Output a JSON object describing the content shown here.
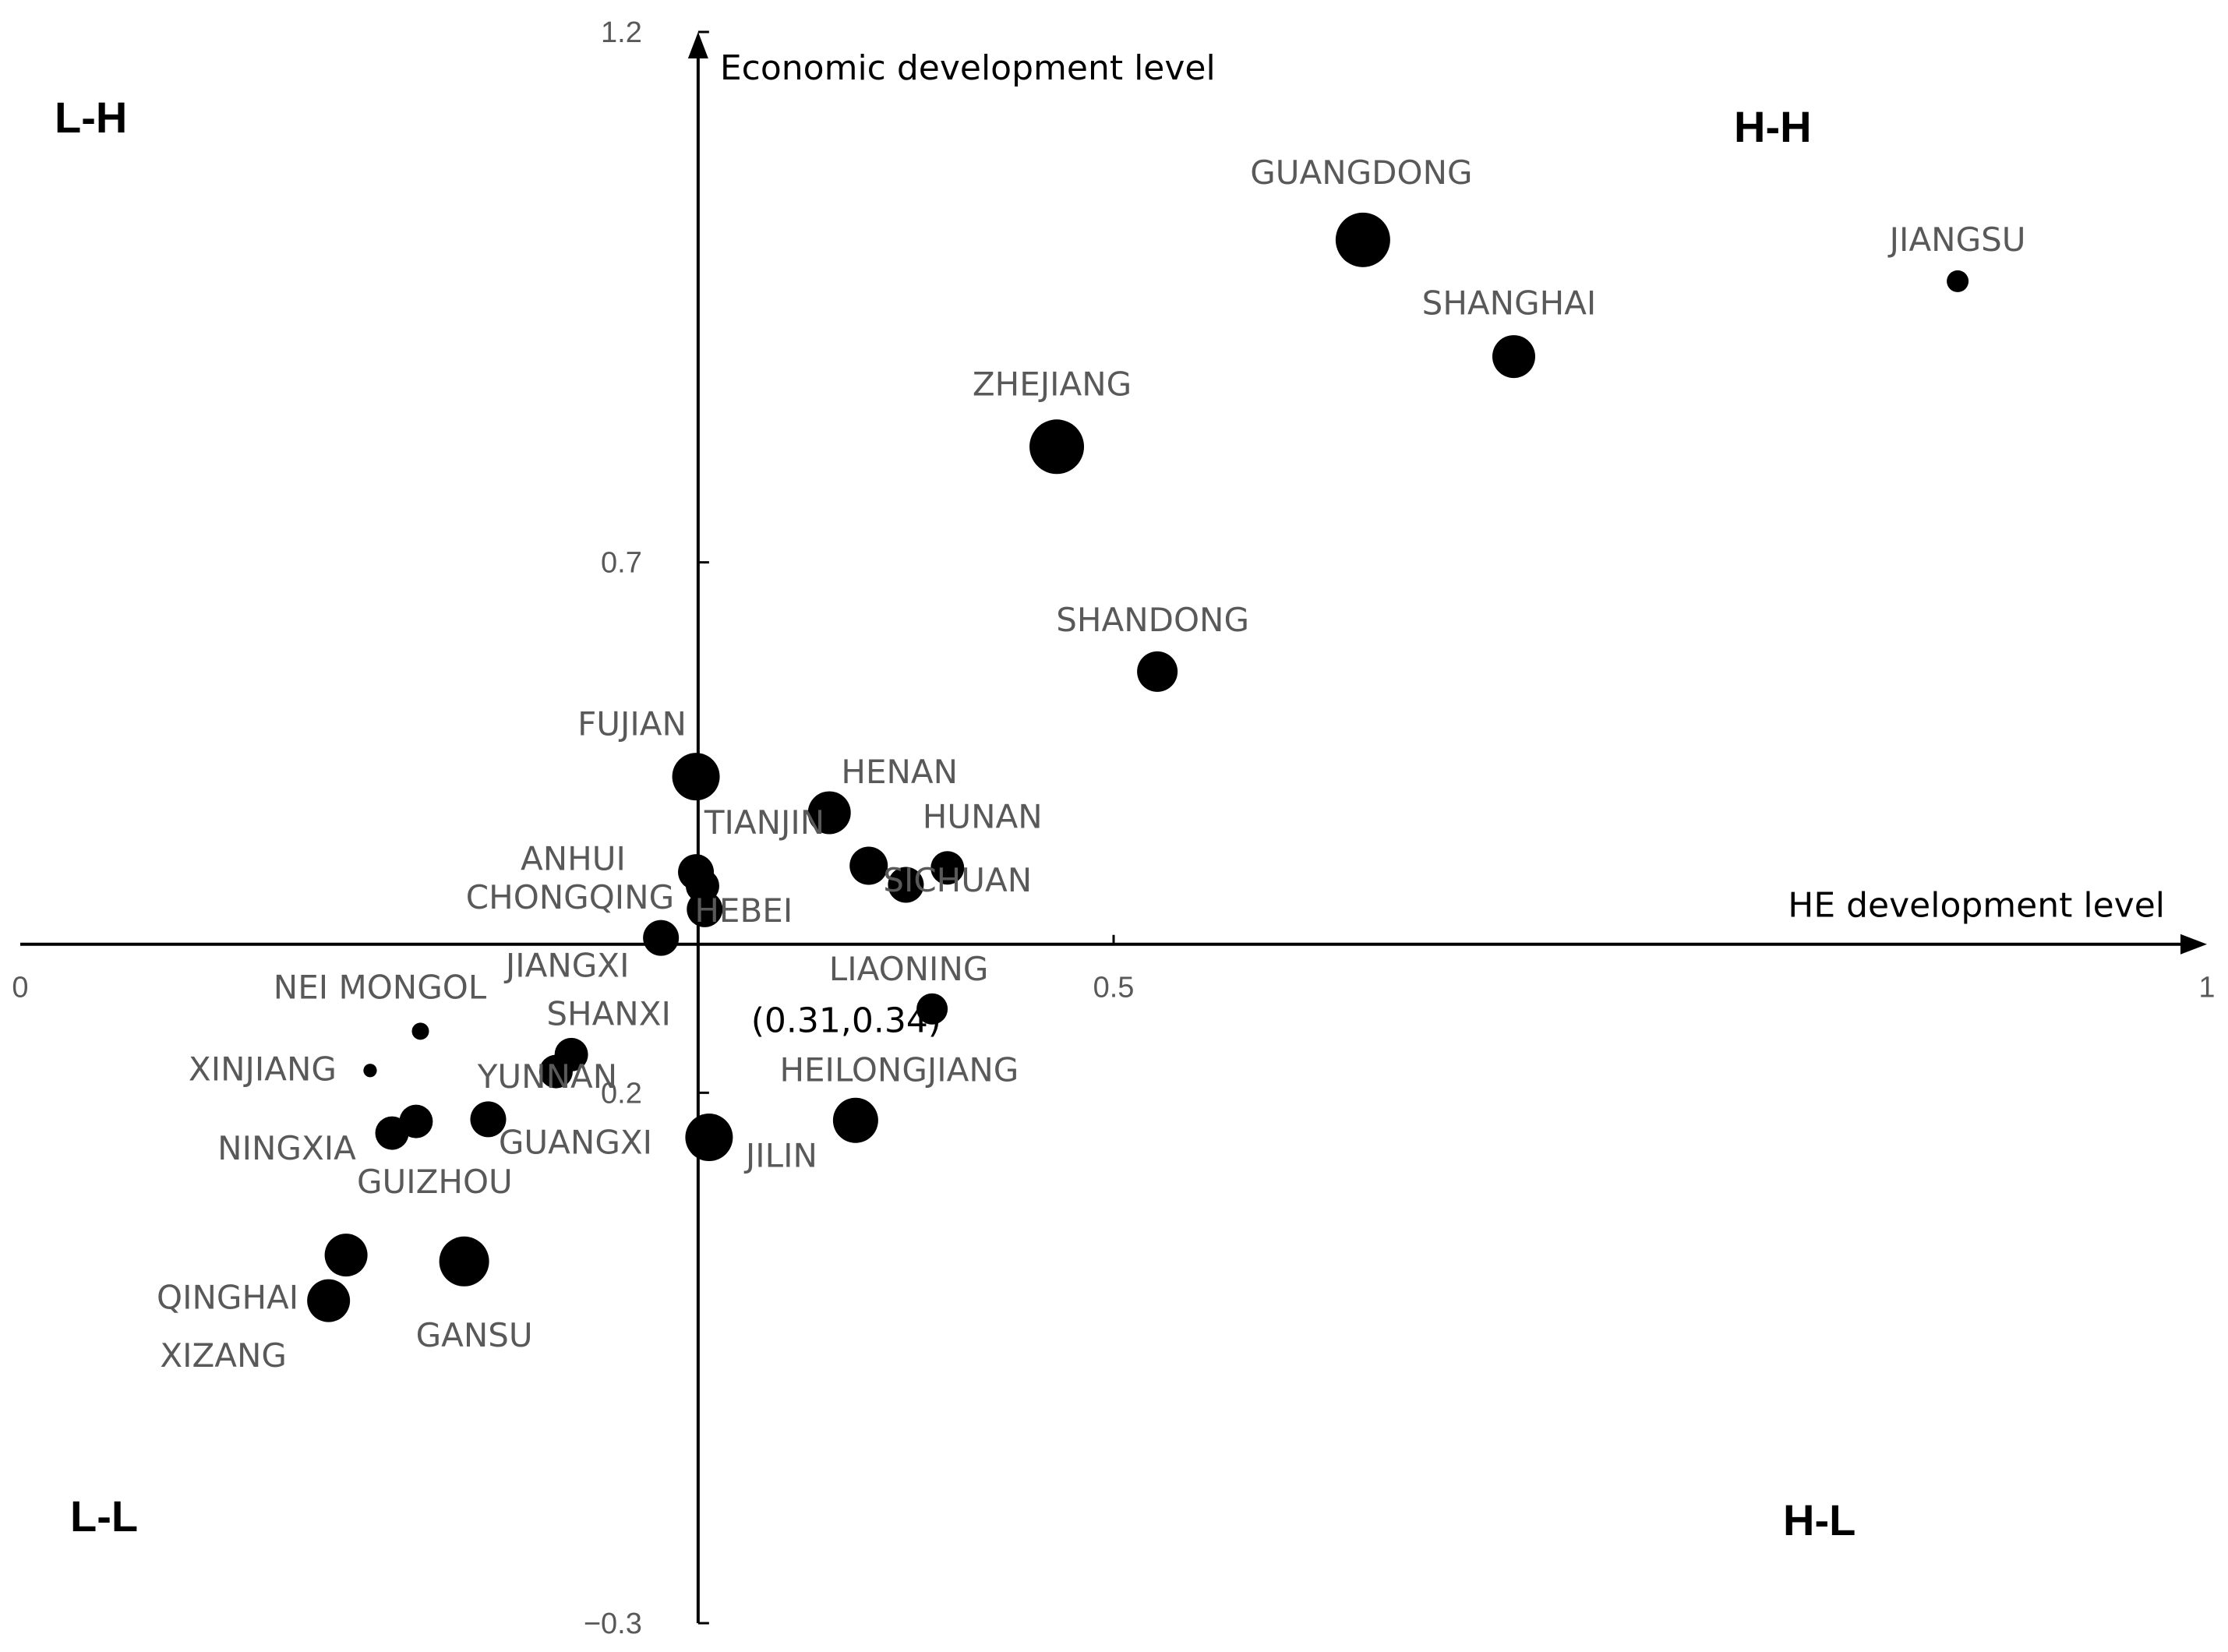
{
  "chart_data": {
    "type": "scatter",
    "xlabel": "HE development level",
    "ylabel": "Economic development level",
    "xlim": [
      0,
      1
    ],
    "ylim": [
      -0.3,
      1.2
    ],
    "x_axis_origin": 0.31,
    "y_axis_origin": 0.34,
    "x_ticks": [
      {
        "value": 0,
        "label": "0"
      },
      {
        "value": 0.5,
        "label": "0.5"
      },
      {
        "value": 1,
        "label": "1"
      }
    ],
    "y_ticks": [
      {
        "value": 1.2,
        "label": "1.2"
      },
      {
        "value": 0.7,
        "label": "0.7"
      },
      {
        "value": 0.2,
        "label": "0.2"
      },
      {
        "value": -0.3,
        "label": "−0.3"
      }
    ],
    "quadrants": [
      "L-H",
      "H-H",
      "L-L",
      "H-L"
    ],
    "center_annotation": "(0.31,0.34)",
    "points": [
      {
        "name": "GUANGDONG",
        "x": 0.614,
        "y": 1.004,
        "size": 1.0
      },
      {
        "name": "JIANGSU",
        "x": 0.886,
        "y": 0.965,
        "size": 0.3
      },
      {
        "name": "SHANGHAI",
        "x": 0.683,
        "y": 0.894,
        "size": 0.75
      },
      {
        "name": "ZHEJIANG",
        "x": 0.474,
        "y": 0.809,
        "size": 1.0
      },
      {
        "name": "SHANDONG",
        "x": 0.52,
        "y": 0.597,
        "size": 0.7
      },
      {
        "name": "FUJIAN",
        "x": 0.309,
        "y": 0.498,
        "size": 0.85
      },
      {
        "name": "TIANJIN",
        "x": 0.309,
        "y": 0.408,
        "size": 0.6
      },
      {
        "name": "HENAN",
        "x": 0.37,
        "y": 0.464,
        "size": 0.75
      },
      {
        "name": "HUNAN",
        "x": 0.424,
        "y": 0.412,
        "size": 0.55
      },
      {
        "name": "SICHUAN",
        "x": 0.388,
        "y": 0.414,
        "size": 0.65
      },
      {
        "name": "ANHUI",
        "x": 0.405,
        "y": 0.396,
        "size": 0.6
      },
      {
        "name": "CHONGQING",
        "x": 0.312,
        "y": 0.395,
        "size": 0.55
      },
      {
        "name": "HEBEI",
        "x": 0.313,
        "y": 0.373,
        "size": 0.6
      },
      {
        "name": "JIANGXI",
        "x": 0.293,
        "y": 0.346,
        "size": 0.6
      },
      {
        "name": "LIAONING",
        "x": 0.417,
        "y": 0.279,
        "size": 0.5
      },
      {
        "name": "SHANXI",
        "x": 0.252,
        "y": 0.236,
        "size": 0.55
      },
      {
        "name": "NEI MONGOL",
        "x": 0.183,
        "y": 0.258,
        "size": 0.2
      },
      {
        "name": "XINJIANG",
        "x": 0.16,
        "y": 0.221,
        "size": 0.12
      },
      {
        "name": "YUNNAN",
        "x": 0.245,
        "y": 0.22,
        "size": 0.55
      },
      {
        "name": "HEILONGJIANG",
        "x": 0.382,
        "y": 0.174,
        "size": 0.8
      },
      {
        "name": "JILIN",
        "x": 0.315,
        "y": 0.158,
        "size": 0.85
      },
      {
        "name": "GUANGXI",
        "x": 0.214,
        "y": 0.175,
        "size": 0.6
      },
      {
        "name": "GUIZHOU",
        "x": 0.181,
        "y": 0.173,
        "size": 0.55
      },
      {
        "name": "NINGXIA",
        "x": 0.17,
        "y": 0.162,
        "size": 0.55
      },
      {
        "name": "QINGHAI",
        "x": 0.149,
        "y": 0.047,
        "size": 0.75
      },
      {
        "name": "GANSU",
        "x": 0.203,
        "y": 0.041,
        "size": 0.9
      },
      {
        "name": "XIZANG",
        "x": 0.141,
        "y": 0.004,
        "size": 0.75
      }
    ]
  }
}
